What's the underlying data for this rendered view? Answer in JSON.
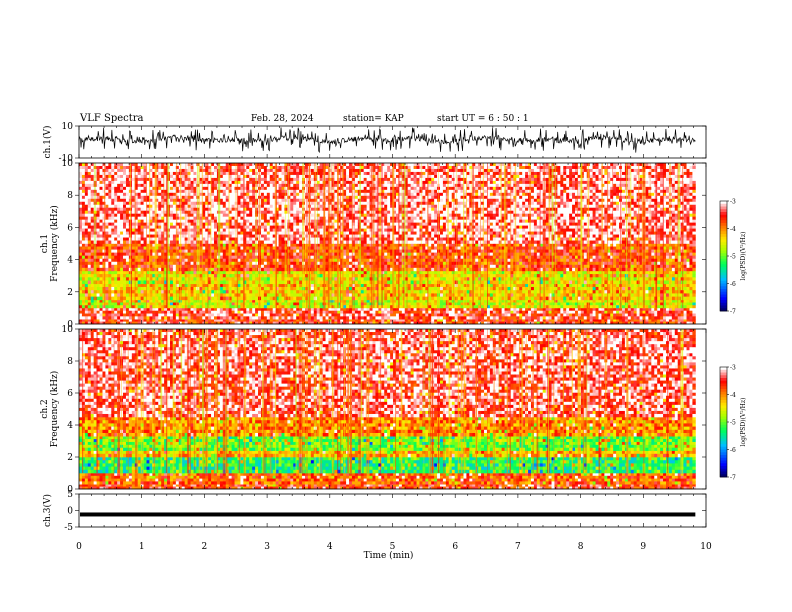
{
  "header": {
    "title": "VLF Spectra",
    "date": "Feb. 28, 2024",
    "station": "station= KAP",
    "start": "start  UT  =   6  : 50 : 1"
  },
  "chart_data": [
    {
      "type": "line",
      "panel": "ch1-waveform",
      "ylabel": "ch.1(V)",
      "ylim": [
        -10,
        10
      ],
      "ytick_labels": [
        "10",
        "-10"
      ],
      "x_range_min": [
        0,
        9.83
      ],
      "note_values": "dense waveform with baseline near +2 V, excursions between about -6 V and +10 V",
      "color": "#000000"
    },
    {
      "type": "heatmap",
      "panel": "ch1-spectrogram",
      "ylabel_lines": [
        "ch.1",
        "Frequency  (kHz)"
      ],
      "ylim": [
        0,
        10
      ],
      "ytick_labels": [
        "0",
        "2",
        "4",
        "6",
        "8",
        "10"
      ],
      "x_range_min": [
        0,
        9.83
      ],
      "colorbar": {
        "label": "log(PSD)(V²/Hz)",
        "range": [
          -7,
          -3
        ],
        "ticks": [
          "-3",
          "-4",
          "-5",
          "-6",
          "-7"
        ]
      },
      "bands": [
        {
          "freq_khz": [
            0,
            0.3
          ],
          "logpsd": -3.6
        },
        {
          "freq_khz": [
            0.3,
            1.0
          ],
          "logpsd": -3.4
        },
        {
          "freq_khz": [
            1.0,
            1.5
          ],
          "logpsd": -4.6
        },
        {
          "freq_khz": [
            1.5,
            2.5
          ],
          "logpsd": -4.3
        },
        {
          "freq_khz": [
            2.5,
            3.3
          ],
          "logpsd": -4.5
        },
        {
          "freq_khz": [
            3.3,
            5.0
          ],
          "logpsd": -3.7
        },
        {
          "freq_khz": [
            5.0,
            10.0
          ],
          "logpsd": -3.2
        }
      ]
    },
    {
      "type": "heatmap",
      "panel": "ch2-spectrogram",
      "ylabel_lines": [
        "ch.2",
        "Frequency  (kHz)"
      ],
      "ylim": [
        0,
        10
      ],
      "ytick_labels": [
        "0",
        "2",
        "4",
        "6",
        "8",
        "10"
      ],
      "x_range_min": [
        0,
        9.83
      ],
      "colorbar": {
        "label": "log(PSD)(V²/Hz)",
        "range": [
          -7,
          -3
        ],
        "ticks": [
          "-3",
          "-4",
          "-5",
          "-6",
          "-7"
        ]
      },
      "bands": [
        {
          "freq_khz": [
            0,
            0.3
          ],
          "logpsd": -3.6
        },
        {
          "freq_khz": [
            0.3,
            1.0
          ],
          "logpsd": -3.8
        },
        {
          "freq_khz": [
            1.0,
            2.0
          ],
          "logpsd": -5.3
        },
        {
          "freq_khz": [
            2.0,
            2.4
          ],
          "logpsd": -4.2
        },
        {
          "freq_khz": [
            2.4,
            3.3
          ],
          "logpsd": -5.0
        },
        {
          "freq_khz": [
            3.3,
            4.5
          ],
          "logpsd": -4.0
        },
        {
          "freq_khz": [
            4.5,
            10.0
          ],
          "logpsd": -3.3
        }
      ]
    },
    {
      "type": "line",
      "panel": "ch3-waveform",
      "ylabel": "ch.3(V)",
      "ylim": [
        -5,
        5
      ],
      "ytick_labels": [
        "5",
        "0",
        "-5"
      ],
      "x_range_min": [
        0,
        9.83
      ],
      "note_values": "near-constant band between about -1.2 V and -0.6 V",
      "color": "#000000"
    }
  ],
  "xaxis": {
    "label": "Time  (min)",
    "range": [
      0,
      10
    ],
    "tick_labels": [
      "0",
      "1",
      "2",
      "3",
      "4",
      "5",
      "6",
      "7",
      "8",
      "9",
      "10"
    ]
  }
}
